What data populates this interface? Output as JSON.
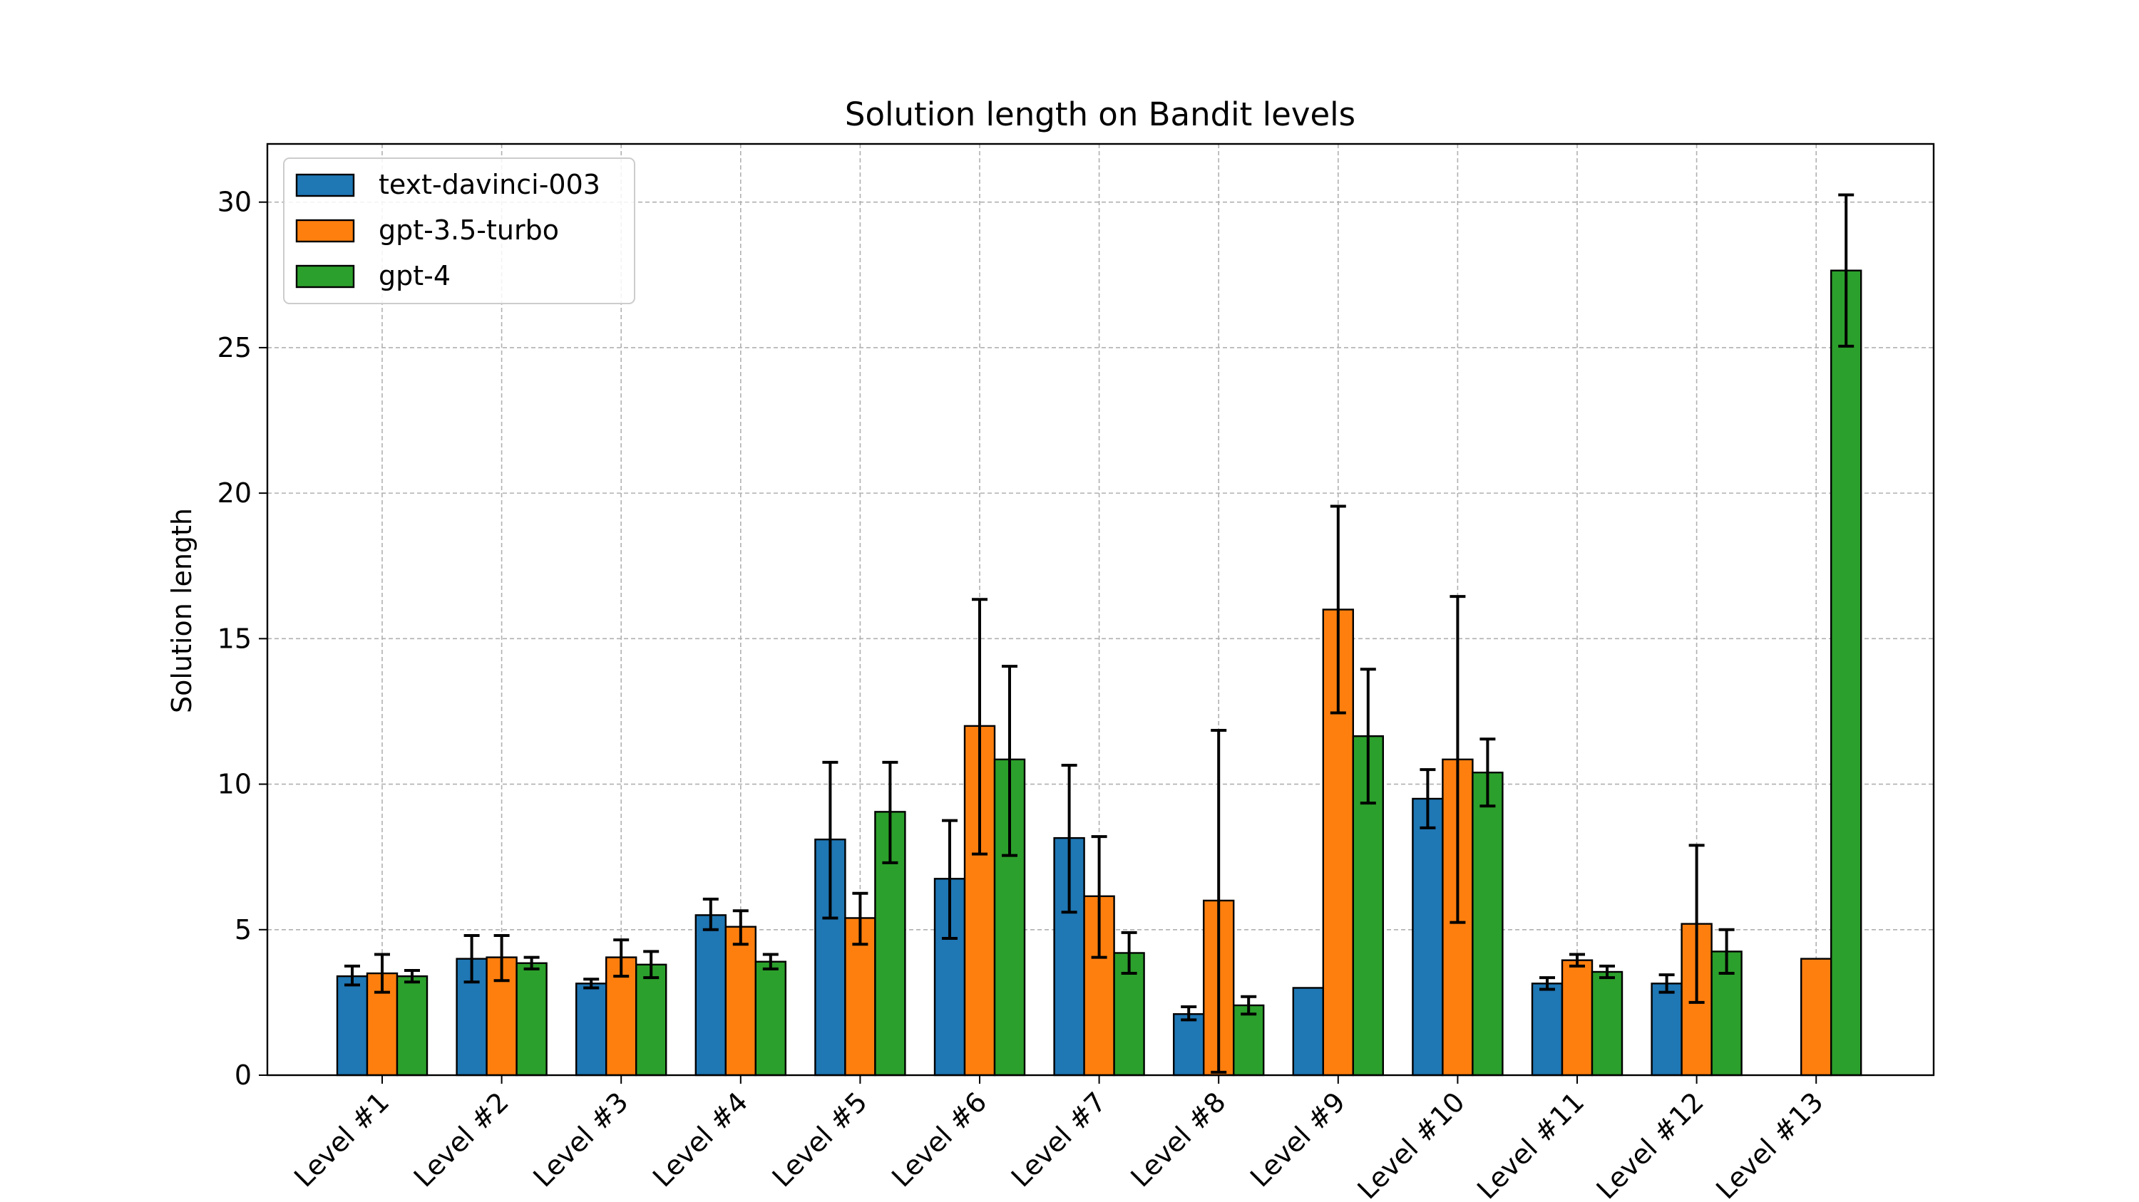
{
  "chart_data": {
    "type": "bar",
    "title": "Solution length on Bandit levels",
    "xlabel": "",
    "ylabel": "Solution length",
    "ylim": [
      0,
      32
    ],
    "yticks": [
      0,
      5,
      10,
      15,
      20,
      25,
      30
    ],
    "grid": true,
    "legend_position": "top-left",
    "categories": [
      "Level #1",
      "Level #2",
      "Level #3",
      "Level #4",
      "Level #5",
      "Level #6",
      "Level #7",
      "Level #8",
      "Level #9",
      "Level #10",
      "Level #11",
      "Level #12",
      "Level #13"
    ],
    "series": [
      {
        "name": "text-davinci-003",
        "color": "#1f77b4",
        "values": [
          3.4,
          4.0,
          3.15,
          5.5,
          8.1,
          6.75,
          8.15,
          2.1,
          3.0,
          9.5,
          3.15,
          3.15,
          null
        ],
        "err_low": [
          3.1,
          3.2,
          3.0,
          5.0,
          5.4,
          4.7,
          5.6,
          1.9,
          null,
          8.5,
          2.95,
          2.85,
          null
        ],
        "err_high": [
          3.75,
          4.8,
          3.3,
          6.05,
          10.75,
          8.75,
          10.65,
          2.35,
          null,
          10.5,
          3.35,
          3.45,
          null
        ]
      },
      {
        "name": "gpt-3.5-turbo",
        "color": "#ff7f0e",
        "values": [
          3.5,
          4.05,
          4.05,
          5.1,
          5.4,
          12.0,
          6.15,
          6.0,
          16.0,
          10.85,
          3.95,
          5.2,
          4.0
        ],
        "err_low": [
          2.85,
          3.25,
          3.4,
          4.5,
          4.5,
          7.6,
          4.05,
          0.1,
          12.45,
          5.25,
          3.75,
          2.5,
          null
        ],
        "err_high": [
          4.15,
          4.8,
          4.65,
          5.65,
          6.25,
          16.35,
          8.2,
          11.85,
          19.55,
          16.45,
          4.15,
          7.9,
          null
        ]
      },
      {
        "name": "gpt-4",
        "color": "#2ca02c",
        "values": [
          3.4,
          3.85,
          3.8,
          3.9,
          9.05,
          10.85,
          4.2,
          2.4,
          11.65,
          10.4,
          3.55,
          4.25,
          27.65
        ],
        "err_low": [
          3.2,
          3.65,
          3.35,
          3.65,
          7.3,
          7.55,
          3.5,
          2.1,
          9.35,
          9.25,
          3.35,
          3.5,
          25.05
        ],
        "err_high": [
          3.6,
          4.05,
          4.25,
          4.15,
          10.75,
          14.05,
          4.9,
          2.7,
          13.95,
          11.55,
          3.75,
          5.0,
          30.25
        ]
      }
    ]
  }
}
